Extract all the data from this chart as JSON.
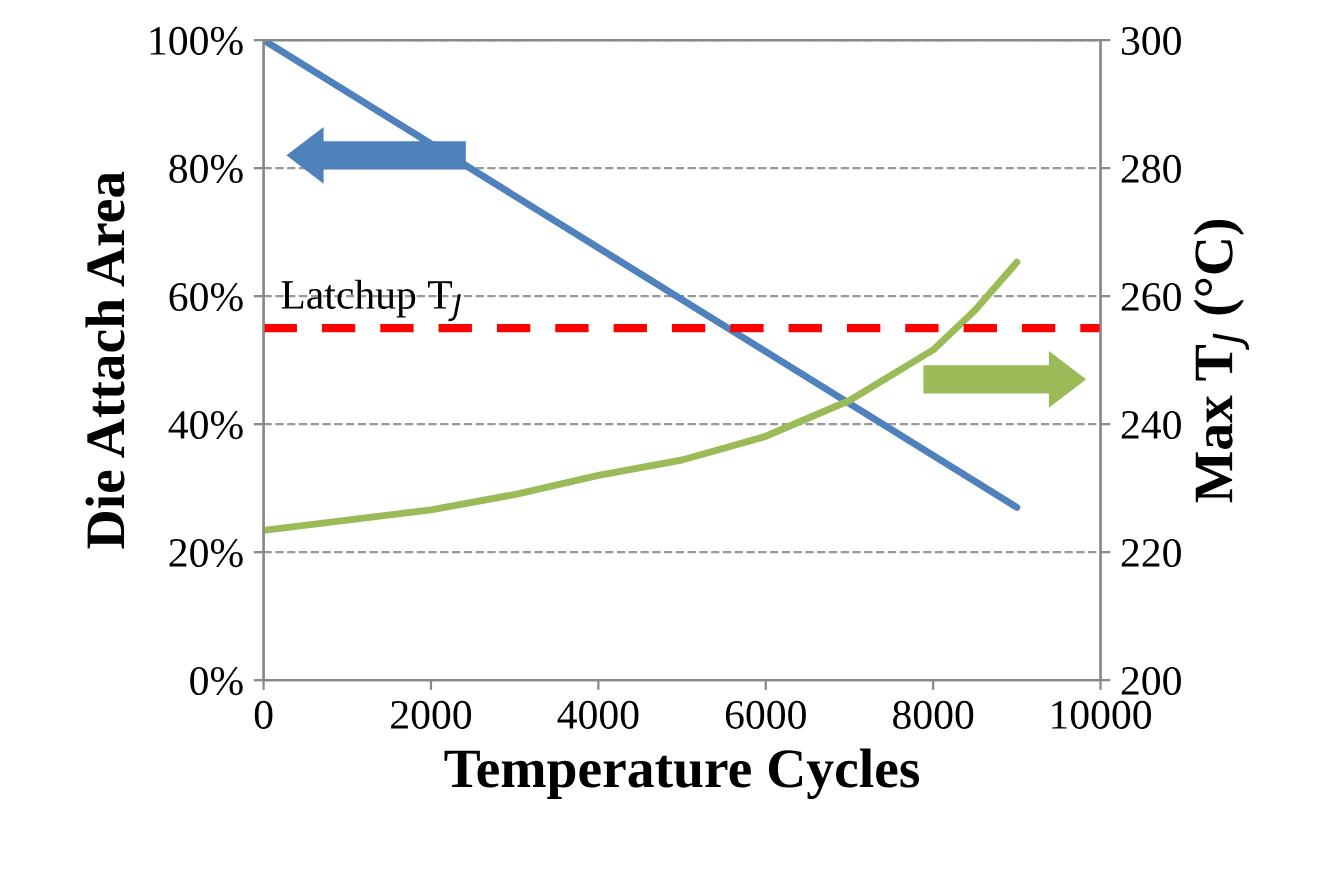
{
  "chart_data": {
    "type": "line",
    "xlabel": "Temperature Cycles",
    "ylabel": "Die Attach Area",
    "y2label": "Max T$_{J}$ (°C)",
    "x": [
      0,
      1000,
      2000,
      3000,
      4000,
      5000,
      6000,
      7000,
      8000,
      8500,
      9000
    ],
    "series": [
      {
        "color": "#4f81bd",
        "x": [
          0,
          9000
        ],
        "values": [
          100,
          27
        ]
      },
      {
        "color": "#9bbb59",
        "axis": "y2",
        "values": [
          223.4,
          225,
          226.6,
          229,
          232,
          234.4,
          238.1,
          243.7,
          251.6,
          257.8,
          265.3
        ]
      }
    ],
    "xlim": [
      0,
      10000
    ],
    "xticks": [
      0,
      2000,
      4000,
      6000,
      8000,
      10000
    ],
    "ylim": [
      0,
      100
    ],
    "yticks": [
      {
        "value": 0,
        "label": "0%"
      },
      {
        "value": 20,
        "label": "20%"
      },
      {
        "value": 40,
        "label": "40%"
      },
      {
        "value": 60,
        "label": "60%"
      },
      {
        "value": 80,
        "label": "80%"
      },
      {
        "value": 100,
        "label": "100%"
      }
    ],
    "y2lim": [
      200,
      300
    ],
    "y2ticks": [
      200,
      220,
      240,
      260,
      280,
      300
    ],
    "ref_lines": [
      {
        "axis": "y2",
        "value": 255,
        "label": "Latchup T$_{J}$",
        "color": "#ff0000",
        "line_style": "dashed"
      }
    ],
    "grid": "y",
    "marker": "none",
    "line_style": "solid"
  }
}
